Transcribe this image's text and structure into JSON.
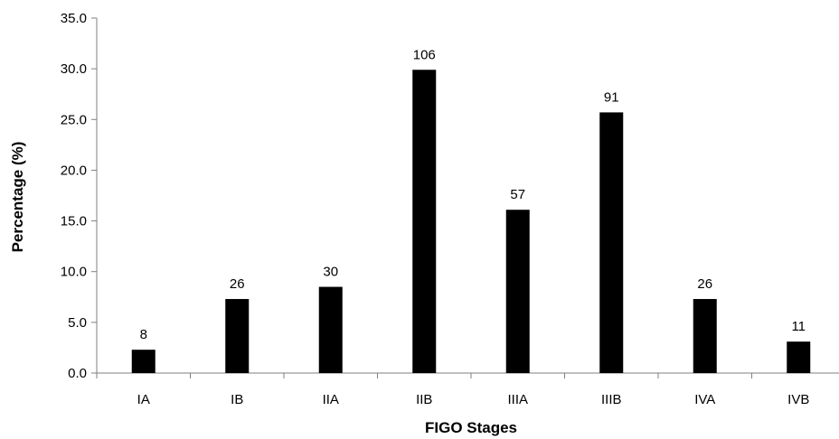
{
  "chart_data": {
    "type": "bar",
    "categories": [
      "IA",
      "IB",
      "IIA",
      "IIB",
      "IIIA",
      "IIIB",
      "IVA",
      "IVB"
    ],
    "values": [
      2.3,
      7.3,
      8.5,
      29.9,
      16.1,
      25.7,
      7.3,
      3.1
    ],
    "data_labels": [
      "8",
      "26",
      "30",
      "106",
      "57",
      "91",
      "26",
      "11"
    ],
    "xlabel": "FIGO Stages",
    "ylabel": "Percentage (%)",
    "ylim": [
      0,
      35
    ],
    "yticks": [
      "0.0",
      "5.0",
      "10.0",
      "15.0",
      "20.0",
      "25.0",
      "30.0",
      "35.0"
    ],
    "grid": false,
    "legend": "none",
    "bar_color": "#000000",
    "axis_color": "#7f7f7f"
  }
}
